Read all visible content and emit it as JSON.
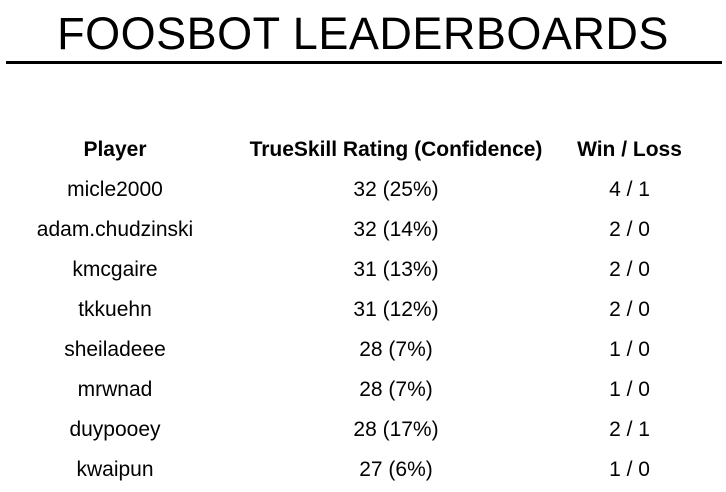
{
  "header": {
    "title": "FOOSBOT LEADERBOARDS"
  },
  "leaderboard": {
    "columns": {
      "player": "Player",
      "rating": "TrueSkill Rating (Confidence)",
      "win_loss": "Win / Loss"
    },
    "rows": [
      {
        "player": "micle2000",
        "rating": "32 (25%)",
        "win_loss": "4 / 1"
      },
      {
        "player": "adam.chudzinski",
        "rating": "32 (14%)",
        "win_loss": "2 / 0"
      },
      {
        "player": "kmcgaire",
        "rating": "31 (13%)",
        "win_loss": "2 / 0"
      },
      {
        "player": "tkkuehn",
        "rating": "31 (12%)",
        "win_loss": "2 / 0"
      },
      {
        "player": "sheiladeee",
        "rating": "28 (7%)",
        "win_loss": "1 / 0"
      },
      {
        "player": "mrwnad",
        "rating": "28 (7%)",
        "win_loss": "1 / 0"
      },
      {
        "player": "duypooey",
        "rating": "28 (17%)",
        "win_loss": "2 / 1"
      },
      {
        "player": "kwaipun",
        "rating": "27 (6%)",
        "win_loss": "1 / 0"
      }
    ]
  }
}
